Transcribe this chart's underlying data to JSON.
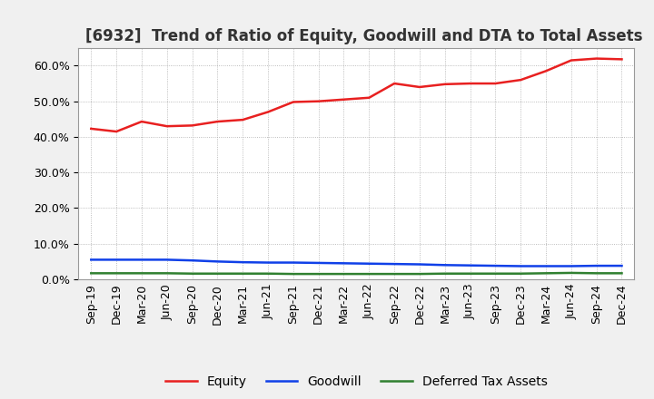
{
  "title": "[6932]  Trend of Ratio of Equity, Goodwill and DTA to Total Assets",
  "x_labels": [
    "Sep-19",
    "Dec-19",
    "Mar-20",
    "Jun-20",
    "Sep-20",
    "Dec-20",
    "Mar-21",
    "Jun-21",
    "Sep-21",
    "Dec-21",
    "Mar-22",
    "Jun-22",
    "Sep-22",
    "Dec-22",
    "Mar-23",
    "Jun-23",
    "Sep-23",
    "Dec-23",
    "Mar-24",
    "Jun-24",
    "Sep-24",
    "Dec-24"
  ],
  "equity": [
    0.423,
    0.415,
    0.443,
    0.43,
    0.432,
    0.443,
    0.448,
    0.47,
    0.498,
    0.5,
    0.505,
    0.51,
    0.55,
    0.54,
    0.548,
    0.55,
    0.55,
    0.56,
    0.585,
    0.615,
    0.62,
    0.618
  ],
  "goodwill": [
    0.055,
    0.055,
    0.055,
    0.055,
    0.053,
    0.05,
    0.048,
    0.047,
    0.047,
    0.046,
    0.045,
    0.044,
    0.043,
    0.042,
    0.04,
    0.039,
    0.038,
    0.037,
    0.037,
    0.037,
    0.038,
    0.038
  ],
  "dta": [
    0.017,
    0.017,
    0.017,
    0.017,
    0.016,
    0.016,
    0.016,
    0.016,
    0.015,
    0.015,
    0.015,
    0.015,
    0.015,
    0.015,
    0.016,
    0.016,
    0.016,
    0.016,
    0.017,
    0.018,
    0.017,
    0.017
  ],
  "equity_color": "#e82020",
  "goodwill_color": "#1040e8",
  "dta_color": "#308030",
  "bg_color": "#f0f0f0",
  "plot_bg_color": "#ffffff",
  "grid_color": "#aaaaaa",
  "ylim": [
    0.0,
    0.65
  ],
  "yticks": [
    0.0,
    0.1,
    0.2,
    0.3,
    0.4,
    0.5,
    0.6
  ],
  "legend_labels": [
    "Equity",
    "Goodwill",
    "Deferred Tax Assets"
  ],
  "title_fontsize": 12,
  "tick_fontsize": 9,
  "legend_fontsize": 10,
  "line_width": 1.8
}
